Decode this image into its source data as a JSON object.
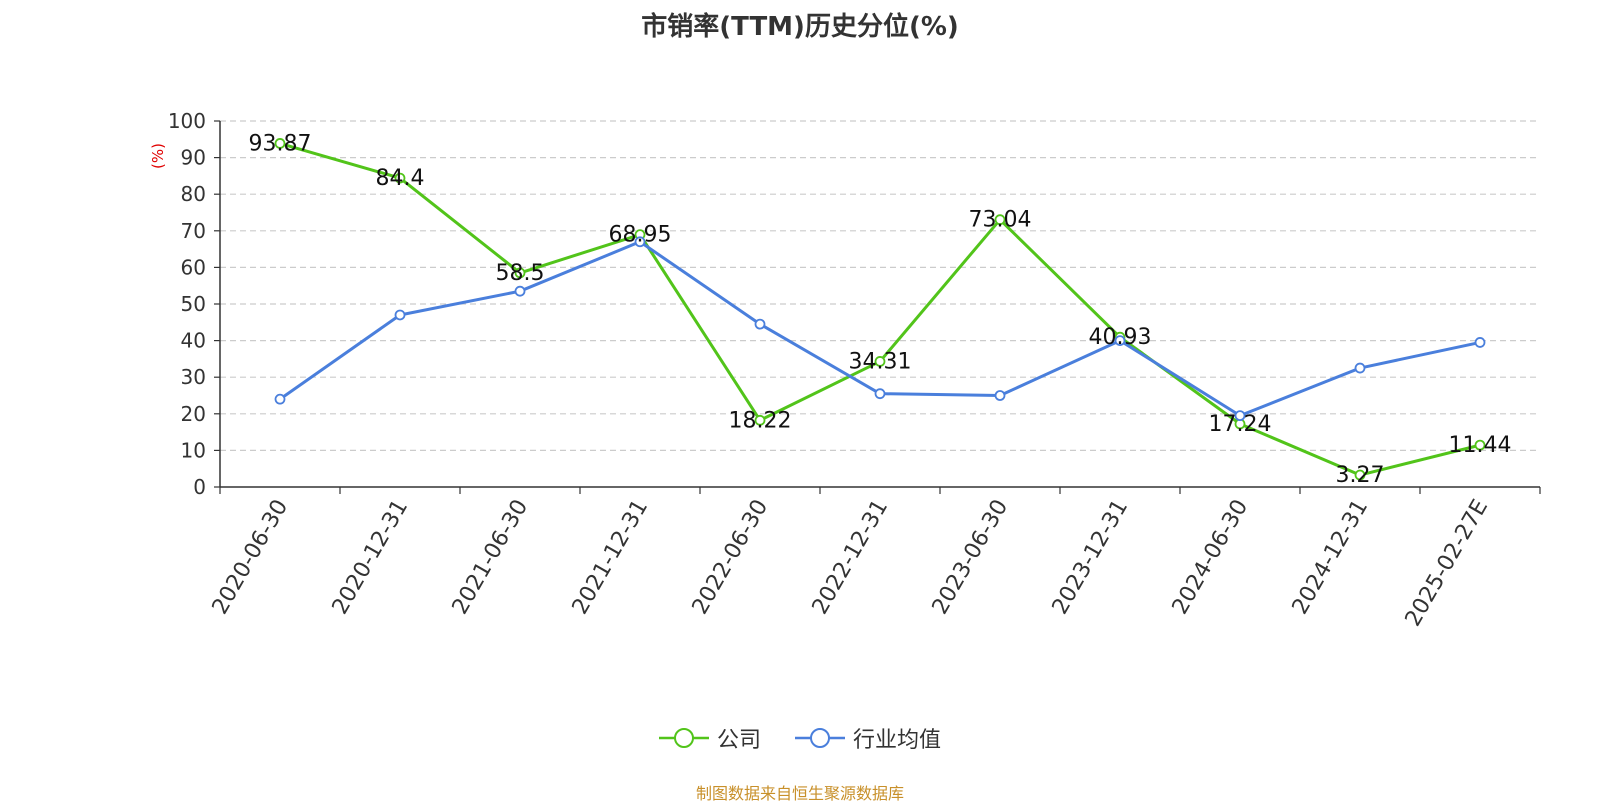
{
  "chart_data": {
    "type": "line",
    "title": "市销率(TTM)历史分位(%)",
    "ylabel": "(%)",
    "ylim": [
      0,
      100
    ],
    "yticks": [
      0,
      10,
      20,
      30,
      40,
      50,
      60,
      70,
      80,
      90,
      100
    ],
    "grid": true,
    "legend_position": "bottom",
    "categories": [
      "2020-06-30",
      "2020-12-31",
      "2021-06-30",
      "2021-12-31",
      "2022-06-30",
      "2022-12-31",
      "2023-06-30",
      "2023-12-31",
      "2024-06-30",
      "2024-12-31",
      "2025-02-27E"
    ],
    "series": [
      {
        "name": "公司",
        "color": "#52c41a",
        "values": [
          93.87,
          84.4,
          58.5,
          68.95,
          18.22,
          34.31,
          73.04,
          40.93,
          17.24,
          3.27,
          11.44
        ],
        "labels": [
          "93.87",
          "84.4",
          "58.5",
          "68.95",
          "18.22",
          "34.31",
          "73.04",
          "40.93",
          "17.24",
          "3.27",
          "11.44"
        ]
      },
      {
        "name": "行业均值",
        "color": "#4a7fdc",
        "values": [
          24,
          47,
          53.5,
          67,
          44.5,
          25.5,
          25,
          40,
          19.5,
          32.5,
          39.5
        ]
      }
    ],
    "source": "制图数据来自恒生聚源数据库"
  }
}
